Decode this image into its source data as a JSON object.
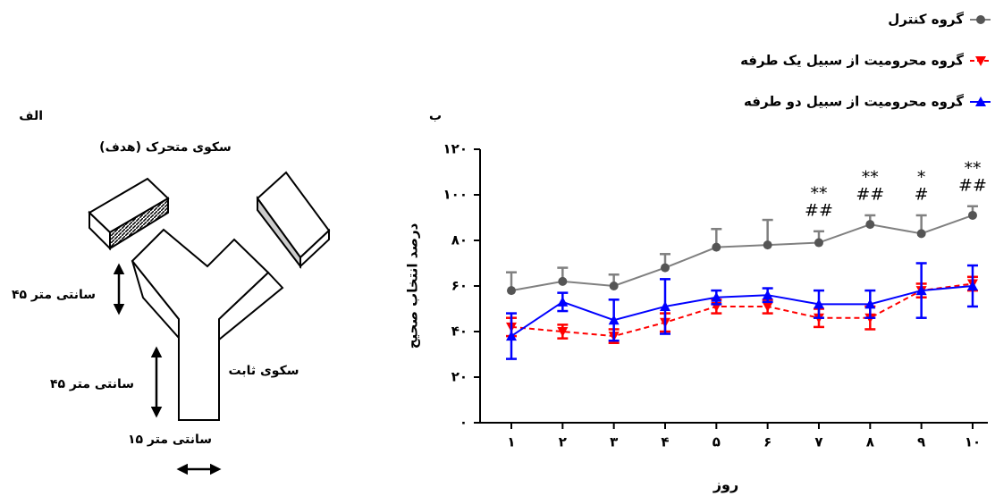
{
  "chart_data": {
    "type": "line",
    "panel_label": "ب",
    "x_label": "روز",
    "y_label": "درصد انتخاب صحیح",
    "categories": [
      "۱",
      "۲",
      "۳",
      "۴",
      "۵",
      "۶",
      "۷",
      "۸",
      "۹",
      "۱۰"
    ],
    "ylim": [
      0,
      120
    ],
    "yticks": [
      {
        "value": 0,
        "label": "۰"
      },
      {
        "value": 20,
        "label": "۲۰"
      },
      {
        "value": 40,
        "label": "۴۰"
      },
      {
        "value": 60,
        "label": "۶۰"
      },
      {
        "value": 80,
        "label": "۸۰"
      },
      {
        "value": 100,
        "label": "۱۰۰"
      },
      {
        "value": 120,
        "label": "۱۲۰"
      }
    ],
    "legend": "top-right",
    "series": [
      {
        "name": "گروه کنترل",
        "color": "#808080",
        "marker": "circle",
        "dashed": false,
        "error_bars": "up",
        "values": [
          58,
          62,
          60,
          68,
          77,
          78,
          79,
          87,
          83,
          91
        ],
        "errors": [
          8,
          6,
          5,
          6,
          8,
          11,
          5,
          4,
          8,
          4
        ]
      },
      {
        "name": "گروه محرومیت از سبیل یک طرفه",
        "color": "#ff0000",
        "marker": "triangle-down",
        "dashed": true,
        "error_bars": "both",
        "values": [
          42,
          40,
          38,
          44,
          51,
          51,
          46,
          46,
          58,
          61
        ],
        "errors": [
          4,
          3,
          3,
          4,
          3,
          3,
          4,
          5,
          3,
          3
        ]
      },
      {
        "name": "گروه محرومیت از سبیل دو طرفه",
        "color": "#0000ff",
        "marker": "triangle-up",
        "dashed": false,
        "error_bars": "both",
        "values": [
          38,
          53,
          45,
          51,
          55,
          56,
          52,
          52,
          58,
          60
        ],
        "errors": [
          10,
          4,
          9,
          12,
          3,
          3,
          6,
          6,
          12,
          9
        ]
      }
    ],
    "annotations": [
      null,
      null,
      null,
      null,
      null,
      null,
      [
        "**",
        "##"
      ],
      [
        "**",
        "##"
      ],
      [
        "*",
        "#"
      ],
      [
        "**",
        "##"
      ]
    ]
  },
  "diagram": {
    "panel_label": "الف",
    "moving_platform": "سکوی متحرک (هدف)",
    "arm_length_1": "۴۵ سانتی متر",
    "arm_length_2": "۴۵ سانتی متر",
    "fixed_platform": "سکوی ثابت",
    "arm_width": "۱۵ سانتی متر"
  }
}
